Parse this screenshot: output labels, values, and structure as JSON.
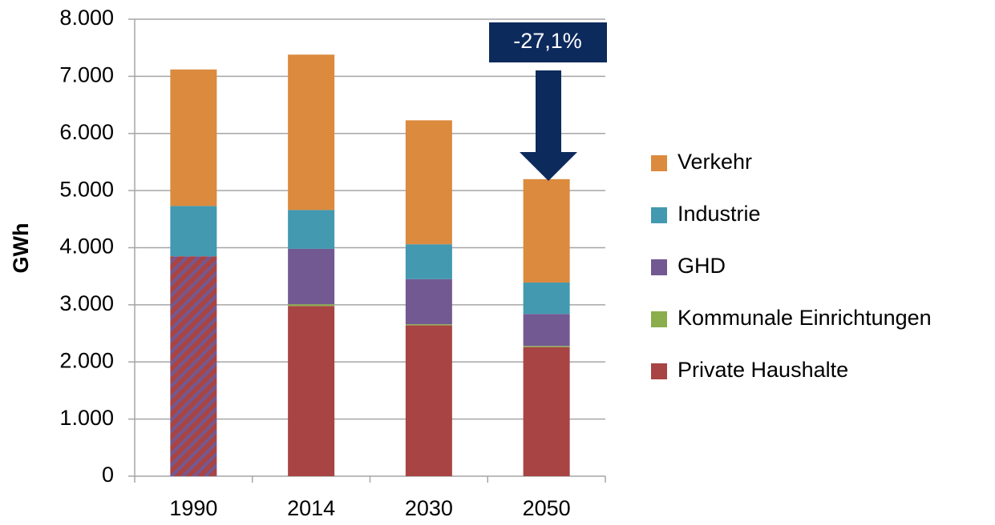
{
  "chart_data": {
    "type": "stacked_bar",
    "y_label": "GWh",
    "annotation": "-27,1%",
    "categories": [
      "1990",
      "2014",
      "2030",
      "2050"
    ],
    "series": [
      {
        "name": "Private Haushalte",
        "color": "#a84443",
        "values": [
          3850,
          2980,
          2640,
          2260
        ],
        "hatched": [
          true,
          false,
          false,
          false
        ]
      },
      {
        "name": "Kommunale Einrichtungen",
        "color": "#8aad4e",
        "values": [
          null,
          30,
          20,
          20
        ]
      },
      {
        "name": "GHD",
        "color": "#735992",
        "values": [
          null,
          970,
          790,
          560
        ]
      },
      {
        "name": "Industrie",
        "color": "#4299b0",
        "values": [
          880,
          680,
          610,
          550
        ]
      },
      {
        "name": "Verkehr",
        "color": "#db8a3e",
        "values": [
          2390,
          2720,
          2170,
          1810
        ]
      }
    ],
    "ylim": [
      0,
      8000
    ],
    "yticks": [
      0,
      {
        "value": 1000,
        "label": "1.000"
      },
      {
        "value": 2000,
        "label": "2.000"
      },
      {
        "value": 3000,
        "label": "3.000"
      },
      {
        "value": 4000,
        "label": "4.000"
      },
      {
        "value": 5000,
        "label": "5.000"
      },
      {
        "value": 6000,
        "label": "6.000"
      },
      {
        "value": 7000,
        "label": "7.000"
      },
      {
        "value": 8000,
        "label": "8.000"
      }
    ],
    "grid": true,
    "legend": "right"
  }
}
